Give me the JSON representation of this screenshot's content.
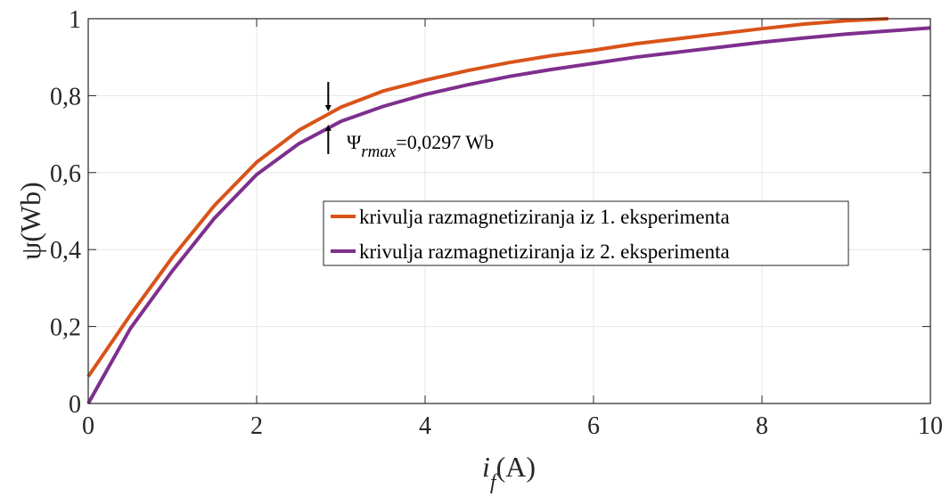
{
  "chart_data": {
    "type": "line",
    "xlim": [
      0,
      10
    ],
    "ylim": [
      0,
      1
    ],
    "xticks": [
      0,
      2,
      4,
      6,
      8,
      10
    ],
    "xtick_labels": [
      "0",
      "2",
      "4",
      "6",
      "8",
      "10"
    ],
    "yticks": [
      0,
      0.2,
      0.4,
      0.6,
      0.8,
      1
    ],
    "ytick_labels": [
      "0",
      "0,2",
      "0,4",
      "0,6",
      "0,8",
      "1"
    ],
    "xlabel_main": "i",
    "xlabel_sub": "f",
    "xlabel_unit": "(A)",
    "ylabel": "ψ(Wb)",
    "grid": true,
    "legend_position": "center-right",
    "series": [
      {
        "name": "krivulja razmagnetiziranja iz 1. eksperimenta",
        "color": "#D95319",
        "x": [
          0,
          0.5,
          1,
          1.5,
          2,
          2.5,
          3,
          3.5,
          4,
          4.5,
          5,
          5.5,
          6,
          6.5,
          7,
          7.5,
          8,
          8.5,
          9,
          9.5
        ],
        "y": [
          0.07,
          0.23,
          0.38,
          0.515,
          0.627,
          0.71,
          0.77,
          0.812,
          0.84,
          0.865,
          0.886,
          0.904,
          0.918,
          0.935,
          0.948,
          0.961,
          0.974,
          0.986,
          0.995,
          1.0
        ]
      },
      {
        "name": "krivulja razmagnetiziranja iz 2. eksperimenta",
        "color": "#7E2F8E",
        "x": [
          0,
          0.5,
          1,
          1.5,
          2,
          2.5,
          3,
          3.5,
          4,
          4.5,
          5,
          5.5,
          6,
          6.5,
          7,
          7.5,
          8,
          8.5,
          9,
          9.5,
          10
        ],
        "y": [
          0.0,
          0.195,
          0.345,
          0.482,
          0.595,
          0.675,
          0.733,
          0.772,
          0.803,
          0.828,
          0.85,
          0.868,
          0.884,
          0.9,
          0.913,
          0.926,
          0.939,
          0.95,
          0.96,
          0.968,
          0.976
        ]
      }
    ],
    "annotation": {
      "x": 2.85,
      "y_top": 0.757,
      "y_bottom": 0.727,
      "symbol": "Ψ",
      "subscript": "rmax",
      "value_text": "=0,0297 Wb"
    }
  }
}
